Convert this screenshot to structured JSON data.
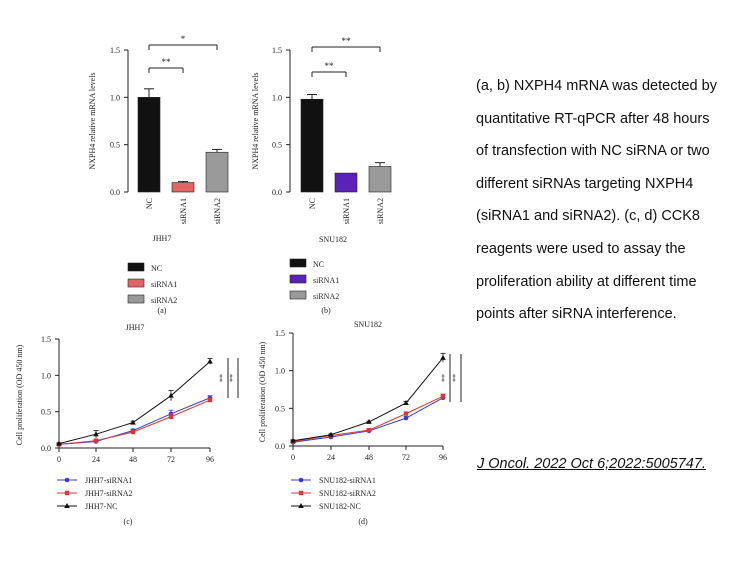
{
  "caption_lines": [
    "(a, b) NXPH4 mRNA was detected by",
    "quantitative RT-qPCR after 48 hours",
    "of transfection with NC siRNA or two",
    "different siRNAs targeting NXPH4",
    "(siRNA1 and siRNA2). (c, d) CCK8",
    "reagents were used to assay the",
    "proliferation ability at different time",
    "points after siRNA interference."
  ],
  "citation": "J Oncol. 2022 Oct 6;2022:5005747.",
  "chart_data": [
    {
      "id": "a",
      "type": "bar",
      "panel_label": "(a)",
      "xlabel": "JHH7",
      "ylabel": "NXPH4 relative mRNA levels",
      "ylim": [
        0,
        1.5
      ],
      "yticks": [
        0.0,
        0.5,
        1.0,
        1.5
      ],
      "ytick_labels": [
        "0.0",
        "0.5",
        "1.0",
        "1.5"
      ],
      "categories": [
        "NC",
        "siRNA1",
        "siRNA2"
      ],
      "values": [
        1.0,
        0.1,
        0.42
      ],
      "errors": [
        0.09,
        0.01,
        0.03
      ],
      "colors": [
        "#111111",
        "#e36464",
        "#9a9a9a"
      ],
      "significance": [
        {
          "from": "NC",
          "to": "siRNA1",
          "label": "**"
        },
        {
          "from": "NC",
          "to": "siRNA2",
          "label": "*"
        }
      ],
      "legend": [
        "NC",
        "siRNA1",
        "siRNA2"
      ]
    },
    {
      "id": "b",
      "type": "bar",
      "panel_label": "(b)",
      "xlabel": "SNU182",
      "ylabel": "NXPH4 relative mRNA levels",
      "ylim": [
        0,
        1.5
      ],
      "yticks": [
        0.0,
        0.5,
        1.0,
        1.5
      ],
      "ytick_labels": [
        "0.0",
        "0.5",
        "1.0",
        "1.5"
      ],
      "categories": [
        "NC",
        "siRNA1",
        "siRNA2"
      ],
      "values": [
        0.98,
        0.2,
        0.27
      ],
      "errors": [
        0.05,
        0.0,
        0.04
      ],
      "colors": [
        "#111111",
        "#5a22b8",
        "#9a9a9a"
      ],
      "significance": [
        {
          "from": "NC",
          "to": "siRNA1",
          "label": "**"
        },
        {
          "from": "NC",
          "to": "siRNA2",
          "label": "**"
        }
      ],
      "legend": [
        "NC",
        "siRNA1",
        "siRNA2"
      ]
    },
    {
      "id": "c",
      "type": "line",
      "panel_label": "(c)",
      "title": "JHH7",
      "ylabel": "Cell proliferation (OD 450 nm)",
      "xlabel": "",
      "x": [
        0,
        24,
        48,
        72,
        96
      ],
      "xtick_labels": [
        "0",
        "24",
        "48",
        "72",
        "96"
      ],
      "ylim": [
        0,
        1.5
      ],
      "yticks": [
        0.0,
        0.5,
        1.0,
        1.5
      ],
      "ytick_labels": [
        "0.0",
        "0.5",
        "1.0",
        "1.5"
      ],
      "series": [
        {
          "name": "JHH7-siRNA1",
          "values": [
            0.05,
            0.09,
            0.24,
            0.47,
            0.69
          ],
          "errors": [
            0.01,
            0.02,
            0.02,
            0.05,
            0.03
          ],
          "color": "#3a3ad4",
          "marker": "circle"
        },
        {
          "name": "JHH7-siRNA2",
          "values": [
            0.05,
            0.1,
            0.22,
            0.43,
            0.66
          ],
          "errors": [
            0.01,
            0.02,
            0.02,
            0.04,
            0.03
          ],
          "color": "#d43a3a",
          "marker": "square"
        },
        {
          "name": "JHH7-NC",
          "values": [
            0.06,
            0.19,
            0.35,
            0.72,
            1.19
          ],
          "errors": [
            0.01,
            0.05,
            0.02,
            0.07,
            0.04
          ],
          "color": "#111111",
          "marker": "triangle"
        }
      ],
      "significance": [
        {
          "label": "**"
        },
        {
          "label": "**"
        }
      ]
    },
    {
      "id": "d",
      "type": "line",
      "panel_label": "(d)",
      "title": "SNU182",
      "ylabel": "Cell proliferation (OD 450 nm)",
      "xlabel": "",
      "x": [
        0,
        24,
        48,
        72,
        96
      ],
      "xtick_labels": [
        "0",
        "24",
        "48",
        "72",
        "96"
      ],
      "ylim": [
        0,
        1.5
      ],
      "yticks": [
        0.0,
        0.5,
        1.0,
        1.5
      ],
      "ytick_labels": [
        "0.0",
        "0.5",
        "1.0",
        "1.5"
      ],
      "series": [
        {
          "name": "SNU182-siRNA1",
          "values": [
            0.05,
            0.12,
            0.2,
            0.37,
            0.64
          ],
          "errors": [
            0.01,
            0.01,
            0.02,
            0.02,
            0.03
          ],
          "color": "#3a3ad4",
          "marker": "circle"
        },
        {
          "name": "SNU182-siRNA2",
          "values": [
            0.06,
            0.14,
            0.21,
            0.43,
            0.66
          ],
          "errors": [
            0.01,
            0.01,
            0.02,
            0.02,
            0.03
          ],
          "color": "#d43a3a",
          "marker": "square"
        },
        {
          "name": "SNU182-NC",
          "values": [
            0.07,
            0.15,
            0.32,
            0.57,
            1.17
          ],
          "errors": [
            0.01,
            0.01,
            0.01,
            0.02,
            0.06
          ],
          "color": "#111111",
          "marker": "triangle"
        }
      ],
      "significance": [
        {
          "label": "**"
        },
        {
          "label": "**"
        }
      ]
    }
  ]
}
